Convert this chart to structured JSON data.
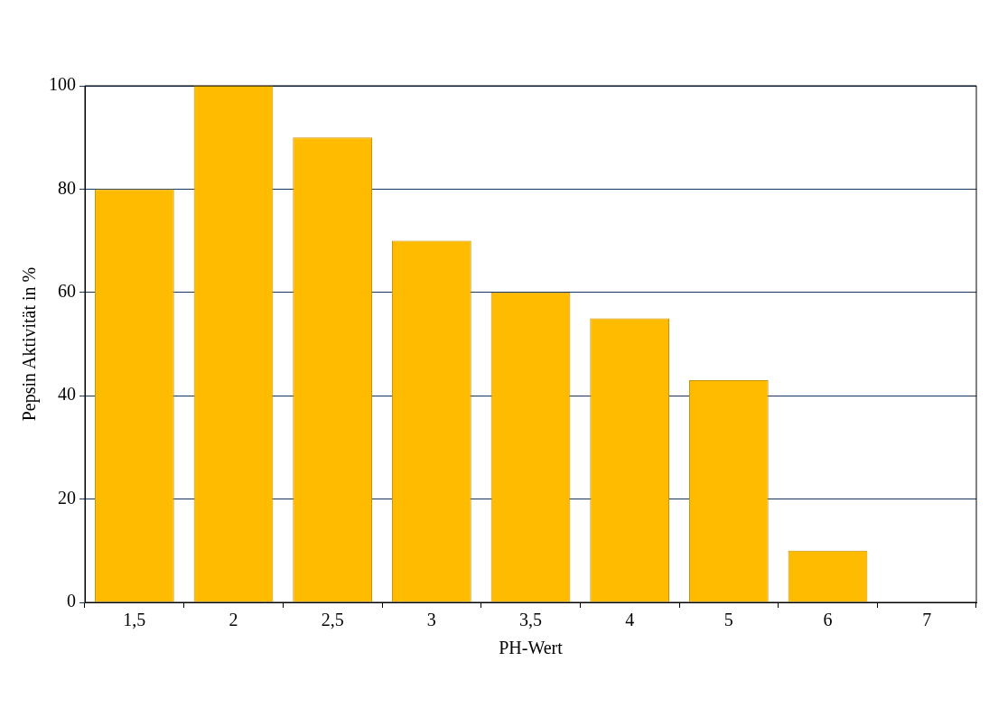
{
  "chart_data": {
    "type": "bar",
    "xlabel": "PH-Wert",
    "ylabel": "Pepsin Aktivität in %",
    "categories": [
      "1,5",
      "2",
      "2,5",
      "3",
      "3,5",
      "4",
      "5",
      "6",
      "7"
    ],
    "values": [
      80,
      100,
      90,
      70,
      60,
      55,
      43,
      10,
      0
    ],
    "color": "#ffbb00",
    "ylim": [
      0,
      100
    ],
    "yticks": [
      0,
      20,
      40,
      60,
      80,
      100
    ],
    "grid": "y",
    "legend": false
  }
}
